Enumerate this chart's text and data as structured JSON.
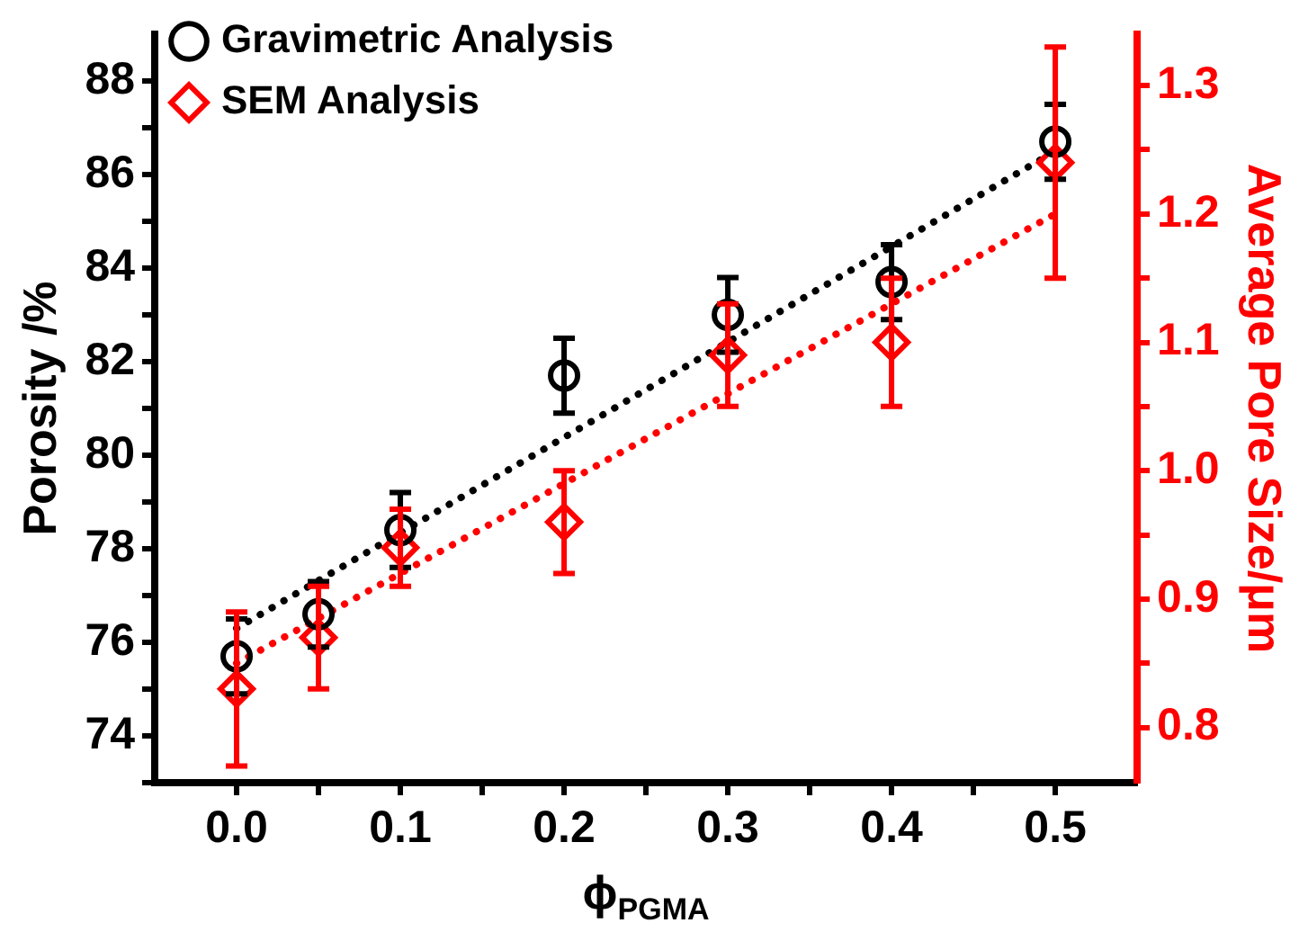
{
  "chart_data": {
    "type": "scatter",
    "xlabel": "ϕ$_{PGMA}$",
    "ylabel": "Porosity /%",
    "y2label": "Average Pore Size/μm",
    "xlim": [
      -0.05,
      0.55
    ],
    "xticks": [
      {
        "value": 0,
        "label": "0.0"
      },
      {
        "value": 0.05,
        "label": null
      },
      0.1,
      {
        "value": 0.15,
        "label": null
      },
      0.2,
      {
        "value": 0.25,
        "label": null
      },
      0.3,
      {
        "value": 0.35,
        "label": null
      },
      0.4,
      {
        "value": 0.45,
        "label": null
      },
      0.5
    ],
    "ylim": [
      73,
      89
    ],
    "yticks": [
      {
        "value": 73,
        "label": null
      },
      74,
      {
        "value": 75,
        "label": null
      },
      76,
      {
        "value": 77,
        "label": null
      },
      78,
      {
        "value": 79,
        "label": null
      },
      80,
      {
        "value": 81,
        "label": null
      },
      82,
      {
        "value": 83,
        "label": null
      },
      84,
      {
        "value": 85,
        "label": null
      },
      86,
      {
        "value": 87,
        "label": null
      },
      88
    ],
    "y2lim": [
      0.757,
      1.34
    ],
    "y2ticks": [
      0.8,
      {
        "value": 0.85,
        "label": null
      },
      0.9,
      {
        "value": 0.95,
        "label": null
      },
      {
        "value": 1,
        "label": "1.0"
      },
      {
        "value": 1.05,
        "label": null
      },
      1.1,
      {
        "value": 1.15,
        "label": null
      },
      1.2,
      {
        "value": 1.25,
        "label": null
      },
      1.3
    ],
    "grid": false,
    "legend": "top left",
    "series": [
      {
        "name": "Gravimetric Analysis",
        "marker": "circle",
        "color": "#000000",
        "x": [
          0,
          0.05,
          0.1,
          0.2,
          0.3,
          0.4,
          0.5
        ],
        "values": [
          75.7,
          76.6,
          78.4,
          81.7,
          83.0,
          83.7,
          86.7
        ],
        "errors": [
          0.8,
          0.7,
          0.8,
          0.8,
          0.8,
          0.8,
          0.8
        ]
      },
      {
        "name": "SEM Analysis",
        "marker": "diamond",
        "axis": "y2",
        "color": "#ff0000",
        "x": [
          0,
          0.05,
          0.1,
          0.2,
          0.3,
          0.4,
          0.5
        ],
        "values": [
          0.83,
          0.87,
          0.94,
          0.96,
          1.09,
          1.1,
          1.24
        ],
        "errors": [
          0.06,
          0.04,
          0.03,
          0.04,
          0.04,
          0.05,
          0.09
        ]
      },
      {
        "type": "line",
        "marker": "none",
        "line_style": "dotted",
        "color": "#000000",
        "x": [
          0,
          0.5
        ],
        "values": [
          76.3,
          86.5
        ]
      },
      {
        "type": "line",
        "marker": "none",
        "line_style": "dotted",
        "axis": "y2",
        "color": "#ff0000",
        "x": [
          0,
          0.5
        ],
        "values": [
          0.85,
          1.2
        ]
      }
    ]
  }
}
